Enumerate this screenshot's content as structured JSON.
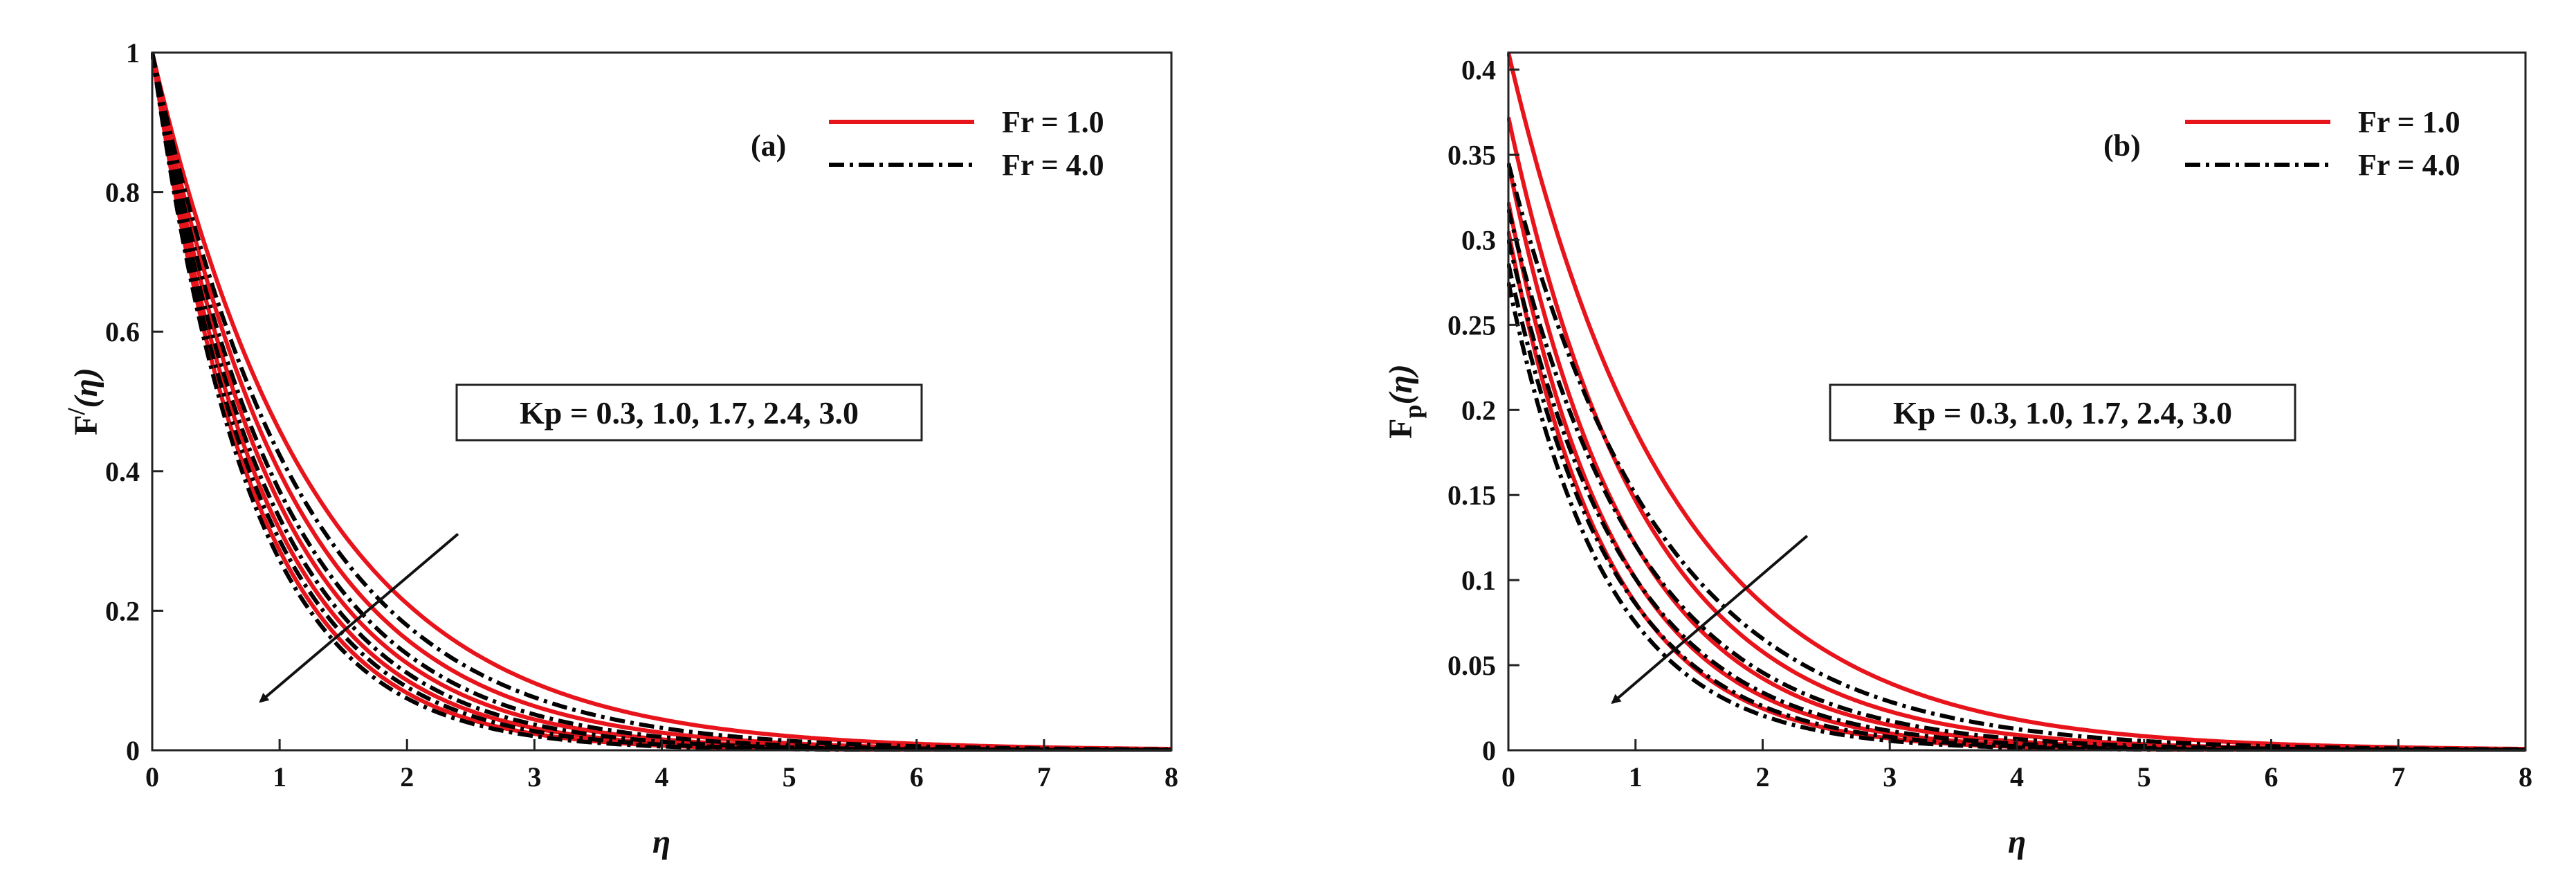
{
  "chart_data": [
    {
      "type": "line",
      "panel_label": "(a)",
      "ylabel_main": "F",
      "ylabel_prime": "/",
      "ylabel_arg": "(η)",
      "xlabel": "η",
      "xlim": [
        0,
        8
      ],
      "ylim": [
        0,
        1
      ],
      "xticks": [
        "0",
        "1",
        "2",
        "3",
        "4",
        "5",
        "6",
        "7",
        "8"
      ],
      "yticks": [
        "0",
        "0.2",
        "0.4",
        "0.6",
        "0.8",
        "1"
      ],
      "legend": [
        {
          "label": "Fr = 1.0",
          "color": "#e8141c",
          "style": "solid"
        },
        {
          "label": "Fr = 4.0",
          "color": "#000000",
          "style": "dashdot"
        }
      ],
      "annotation": "Kp = 0.3, 1.0, 1.7, 2.4, 3.0",
      "series": [
        {
          "name": "Fr = 1.0, Kp = 0.3",
          "color": "#e8141c",
          "style": "solid",
          "y0": 1.0,
          "decay": 0.78
        },
        {
          "name": "Fr = 1.0, Kp = 1.0",
          "color": "#e8141c",
          "style": "solid",
          "y0": 1.0,
          "decay": 0.92
        },
        {
          "name": "Fr = 1.0, Kp = 1.7",
          "color": "#e8141c",
          "style": "solid",
          "y0": 1.0,
          "decay": 1.04
        },
        {
          "name": "Fr = 1.0, Kp = 2.4",
          "color": "#e8141c",
          "style": "solid",
          "y0": 1.0,
          "decay": 1.15
        },
        {
          "name": "Fr = 1.0, Kp = 3.0",
          "color": "#e8141c",
          "style": "solid",
          "y0": 1.0,
          "decay": 1.25
        },
        {
          "name": "Fr = 4.0, Kp = 0.3",
          "color": "#000000",
          "style": "dashdot",
          "y0": 1.0,
          "decay": 0.86
        },
        {
          "name": "Fr = 4.0, Kp = 1.0",
          "color": "#000000",
          "style": "dashdot",
          "y0": 1.0,
          "decay": 0.99
        },
        {
          "name": "Fr = 4.0, Kp = 1.7",
          "color": "#000000",
          "style": "dashdot",
          "y0": 1.0,
          "decay": 1.1
        },
        {
          "name": "Fr = 4.0, Kp = 2.4",
          "color": "#000000",
          "style": "dashdot",
          "y0": 1.0,
          "decay": 1.2
        },
        {
          "name": "Fr = 4.0, Kp = 3.0",
          "color": "#000000",
          "style": "dashdot",
          "y0": 1.0,
          "decay": 1.3
        }
      ],
      "arrow": {
        "from": [
          2.4,
          0.31
        ],
        "to": [
          0.85,
          0.07
        ]
      }
    },
    {
      "type": "line",
      "panel_label": "(b)",
      "ylabel_main": "F",
      "ylabel_sub": "p",
      "ylabel_arg": "(η)",
      "xlabel": "η",
      "xlim": [
        0,
        8
      ],
      "ylim": [
        0,
        0.41
      ],
      "xticks": [
        "0",
        "1",
        "2",
        "3",
        "4",
        "5",
        "6",
        "7",
        "8"
      ],
      "yticks": [
        "0",
        "0.05",
        "0.1",
        "0.15",
        "0.2",
        "0.25",
        "0.3",
        "0.35",
        "0.4"
      ],
      "legend": [
        {
          "label": "Fr = 1.0",
          "color": "#e8141c",
          "style": "solid"
        },
        {
          "label": "Fr = 4.0",
          "color": "#000000",
          "style": "dashdot"
        }
      ],
      "annotation": "Kp = 0.3, 1.0, 1.7, 2.4, 3.0",
      "series": [
        {
          "name": "Fr = 1.0, Kp = 0.3",
          "color": "#e8141c",
          "style": "solid",
          "y0": 0.41,
          "decay": 0.78
        },
        {
          "name": "Fr = 1.0, Kp = 1.0",
          "color": "#e8141c",
          "style": "solid",
          "y0": 0.372,
          "decay": 0.93
        },
        {
          "name": "Fr = 1.0, Kp = 1.7",
          "color": "#e8141c",
          "style": "solid",
          "y0": 0.345,
          "decay": 1.05
        },
        {
          "name": "Fr = 1.0, Kp = 2.4",
          "color": "#e8141c",
          "style": "solid",
          "y0": 0.322,
          "decay": 1.16
        },
        {
          "name": "Fr = 1.0, Kp = 3.0",
          "color": "#e8141c",
          "style": "solid",
          "y0": 0.305,
          "decay": 1.26
        },
        {
          "name": "Fr = 4.0, Kp = 0.3",
          "color": "#000000",
          "style": "dashdot",
          "y0": 0.345,
          "decay": 0.83
        },
        {
          "name": "Fr = 4.0, Kp = 1.0",
          "color": "#000000",
          "style": "dashdot",
          "y0": 0.318,
          "decay": 0.97
        },
        {
          "name": "Fr = 4.0, Kp = 1.7",
          "color": "#000000",
          "style": "dashdot",
          "y0": 0.3,
          "decay": 1.09
        },
        {
          "name": "Fr = 4.0, Kp = 2.4",
          "color": "#000000",
          "style": "dashdot",
          "y0": 0.286,
          "decay": 1.2
        },
        {
          "name": "Fr = 4.0, Kp = 3.0",
          "color": "#000000",
          "style": "dashdot",
          "y0": 0.275,
          "decay": 1.3
        }
      ],
      "arrow": {
        "from": [
          2.35,
          0.126
        ],
        "to": [
          0.82,
          0.028
        ]
      }
    }
  ]
}
